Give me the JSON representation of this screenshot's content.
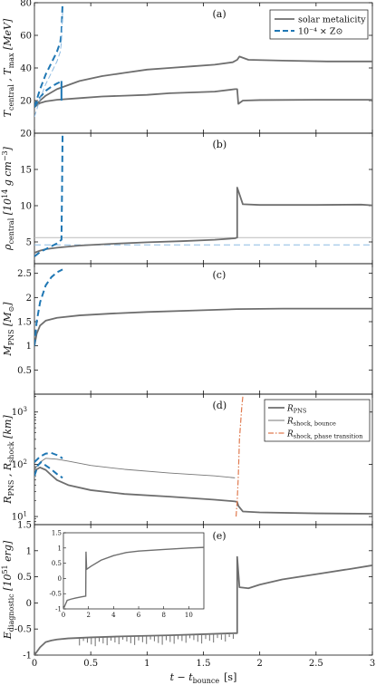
{
  "colors": {
    "solar": "#6e6e6e",
    "lowZ": "#1f77b4",
    "lowZ_light": "#8cbbe3",
    "shock": "#777777",
    "phase": "#e07a4f",
    "axis": "#111111"
  },
  "xaxis": {
    "label_main": "t − t",
    "label_sub": "bounce",
    "label_unit": "[s]",
    "ticks": [
      "0",
      "0.5",
      "1",
      "1.5",
      "2",
      "2.5",
      "3"
    ],
    "range": [
      0,
      3
    ]
  },
  "chart_data": [
    {
      "type": "line",
      "panel_label": "(a)",
      "ylabel_parts": [
        "T",
        "central",
        " , T",
        "max",
        " [MeV]"
      ],
      "ylim": [
        0,
        80
      ],
      "yticks": [
        "20",
        "40",
        "60",
        "80"
      ],
      "legend": {
        "placement": "top-right",
        "entries": [
          "solar metalicity",
          "10⁻⁴ × Z⊙"
        ]
      },
      "series": [
        {
          "name": "solar metalicity",
          "style": "solid",
          "values_x": [
            0,
            0.05,
            0.1,
            0.2,
            0.4,
            0.6,
            0.8,
            1.0,
            1.2,
            1.4,
            1.6,
            1.76,
            1.8,
            1.82,
            1.9,
            2.2,
            2.6,
            3.0
          ],
          "values_y": [
            16,
            20,
            23,
            27,
            32,
            35,
            37,
            39,
            40,
            41,
            42,
            43.5,
            45,
            47,
            45,
            44.5,
            44,
            44
          ]
        },
        {
          "name": "solar metalicity",
          "style": "solid",
          "values_x": [
            0,
            0.05,
            0.1,
            0.2,
            0.4,
            0.6,
            0.8,
            1.0,
            1.2,
            1.4,
            1.6,
            1.78,
            1.8,
            1.81,
            1.85,
            2.0,
            2.5,
            3.0
          ],
          "values_y": [
            16,
            18.5,
            19.5,
            20.5,
            21.5,
            22.5,
            23,
            23.5,
            24.5,
            25,
            25.5,
            27,
            27,
            18,
            20,
            20.3,
            20.5,
            20.5
          ]
        },
        {
          "name": "10⁻⁴ × Z⊙",
          "style": "dashed",
          "values_x": [
            0,
            0.05,
            0.1,
            0.15,
            0.2,
            0.23,
            0.24,
            0.25
          ],
          "values_y": [
            16,
            27,
            36,
            43,
            50,
            56,
            62,
            80
          ]
        },
        {
          "name": "10⁻⁴ × Z⊙",
          "style": "dashed",
          "values_x": [
            0,
            0.05,
            0.1,
            0.15,
            0.2,
            0.23,
            0.24
          ],
          "values_y": [
            16,
            22,
            26,
            28.5,
            30.5,
            31.5,
            32
          ]
        }
      ]
    },
    {
      "type": "line",
      "panel_label": "(b)",
      "ylabel_parts": [
        "ρ",
        "central",
        " [10",
        "14",
        " g cm",
        "−3",
        "]"
      ],
      "ylim": [
        2,
        20
      ],
      "yticks": [
        "5",
        "10",
        "15",
        "20"
      ],
      "series": [
        {
          "name": "solar metalicity",
          "style": "solid",
          "values_x": [
            0,
            0.05,
            0.1,
            0.2,
            0.4,
            0.7,
            1.0,
            1.3,
            1.6,
            1.78,
            1.8,
            1.8,
            1.85,
            2.0,
            2.5,
            2.9,
            3.0
          ],
          "values_y": [
            3.5,
            3.8,
            4.0,
            4.2,
            4.5,
            4.75,
            4.95,
            5.1,
            5.3,
            5.5,
            5.6,
            12.5,
            10.2,
            10.1,
            10.1,
            10.15,
            10.05
          ]
        },
        {
          "name": "10⁻⁴ × Z⊙",
          "style": "dashed",
          "values_x": [
            0,
            0.05,
            0.1,
            0.15,
            0.2,
            0.24,
            0.245,
            0.25
          ],
          "values_y": [
            3.0,
            3.6,
            4.0,
            4.4,
            4.8,
            5.3,
            12,
            20
          ]
        }
      ],
      "reference_lines": [
        {
          "name": "solar metalicity",
          "style": "solid",
          "y": 5.6
        },
        {
          "name": "10⁻⁴ × Z⊙",
          "style": "dashed",
          "y": 4.6
        }
      ]
    },
    {
      "type": "line",
      "panel_label": "(c)",
      "ylabel_parts": [
        "M",
        "PNS",
        " [M",
        "⊙",
        "]"
      ],
      "ylim": [
        0,
        2.7
      ],
      "yticks": [
        "0.5",
        "1",
        "1.5",
        "2",
        "2.5"
      ],
      "series": [
        {
          "name": "solar metalicity",
          "style": "solid",
          "values_x": [
            0,
            0.02,
            0.05,
            0.1,
            0.2,
            0.4,
            0.7,
            1.0,
            1.4,
            1.8,
            2.2,
            2.6,
            3.0
          ],
          "values_y": [
            1.0,
            1.25,
            1.42,
            1.52,
            1.58,
            1.63,
            1.67,
            1.7,
            1.73,
            1.76,
            1.77,
            1.77,
            1.77
          ]
        },
        {
          "name": "10⁻⁴ × Z⊙",
          "style": "dashed",
          "values_x": [
            0,
            0.02,
            0.05,
            0.1,
            0.15,
            0.2,
            0.25
          ],
          "values_y": [
            1.0,
            1.5,
            1.9,
            2.25,
            2.42,
            2.52,
            2.58
          ]
        }
      ]
    },
    {
      "type": "line",
      "panel_label": "(d)",
      "yscale": "log",
      "ylabel_parts": [
        "R",
        "PNS",
        " , R",
        "shock",
        " [km]"
      ],
      "ylim": [
        7,
        2200
      ],
      "yticks": [
        "10",
        "10",
        "10"
      ],
      "ytick_exponents": [
        "1",
        "2",
        "3"
      ],
      "ytick_values": [
        10,
        100,
        1000
      ],
      "legend": {
        "placement": "top-right",
        "entries": [
          "R_PNS",
          "R_shock, bounce",
          "R_shock, phase transition"
        ]
      },
      "legend_labels": [
        {
          "main": "R",
          "sub": "PNS"
        },
        {
          "main": "R",
          "sub": "shock, bounce"
        },
        {
          "main": "R",
          "sub": "shock, phase transition"
        }
      ],
      "series": [
        {
          "name": "R_PNS",
          "style": "solid",
          "values_x": [
            0,
            0.02,
            0.05,
            0.1,
            0.15,
            0.2,
            0.3,
            0.5,
            0.8,
            1.2,
            1.6,
            1.78,
            1.8,
            1.81,
            1.85,
            2.0,
            2.5,
            3.0
          ],
          "values_y": [
            60,
            80,
            87,
            78,
            62,
            50,
            40,
            32,
            27,
            24,
            21,
            19.5,
            19,
            16,
            12.5,
            12,
            11.5,
            11.3
          ]
        },
        {
          "name": "R_shock, bounce",
          "style": "solid-thin",
          "values_x": [
            0,
            0.05,
            0.1,
            0.2,
            0.3,
            0.5,
            0.8,
            1.2,
            1.6,
            1.78
          ],
          "values_y": [
            80,
            110,
            130,
            125,
            115,
            95,
            80,
            68,
            60,
            55
          ]
        },
        {
          "name": "R_shock, phase transition",
          "style": "dashdot",
          "values_x": [
            1.79,
            1.8,
            1.81,
            1.82,
            1.84,
            1.85
          ],
          "values_y": [
            10,
            20,
            60,
            300,
            1200,
            2000
          ]
        },
        {
          "name": "low-Z R_PNS",
          "style": "dashed",
          "values_x": [
            0,
            0.03,
            0.06,
            0.1,
            0.15,
            0.2,
            0.25
          ],
          "values_y": [
            60,
            95,
            110,
            95,
            80,
            65,
            55
          ]
        },
        {
          "name": "low-Z R_shock",
          "style": "dashed",
          "values_x": [
            0,
            0.05,
            0.1,
            0.15,
            0.2,
            0.25
          ],
          "values_y": [
            110,
            140,
            160,
            165,
            150,
            130
          ]
        }
      ]
    },
    {
      "type": "line",
      "panel_label": "(e)",
      "ylabel_parts": [
        "E",
        "diagnostic",
        " [10",
        "51",
        " erg]"
      ],
      "ylim": [
        -1,
        1.5
      ],
      "yticks": [
        "-1",
        "-0.5",
        "0",
        "0.5",
        "1",
        "1.5"
      ],
      "series": [
        {
          "name": "solar metalicity",
          "style": "solid",
          "values_x": [
            0,
            0.05,
            0.1,
            0.15,
            0.2,
            0.3,
            0.5,
            0.8,
            1.2,
            1.5,
            1.78,
            1.8,
            1.8,
            1.82,
            1.9,
            2.0,
            2.2,
            2.5,
            2.8,
            3.0
          ],
          "values_y": [
            -1.0,
            -0.85,
            -0.75,
            -0.72,
            -0.7,
            -0.68,
            -0.66,
            -0.64,
            -0.62,
            -0.6,
            -0.58,
            -0.58,
            0.88,
            0.3,
            0.28,
            0.35,
            0.45,
            0.55,
            0.65,
            0.72
          ]
        }
      ],
      "inset": {
        "xticks": [
          "0",
          "2",
          "4",
          "6",
          "8",
          "10"
        ],
        "xlim": [
          0,
          11.2
        ],
        "ylim": [
          -1,
          1.5
        ],
        "yticks": [
          "-1",
          "-0.5",
          "0",
          "0.5",
          "1",
          "1.5"
        ],
        "series": [
          {
            "name": "solar metalicity",
            "style": "solid",
            "values_x": [
              0,
              0.3,
              0.6,
              1.0,
              1.5,
              1.78,
              1.8,
              1.85,
              2.2,
              3,
              4,
              5,
              6,
              8,
              10,
              11.2
            ],
            "values_y": [
              -1.0,
              -0.72,
              -0.68,
              -0.64,
              -0.6,
              -0.58,
              0.88,
              0.3,
              0.4,
              0.6,
              0.75,
              0.85,
              0.9,
              0.95,
              1.0,
              1.02
            ]
          }
        ]
      }
    }
  ]
}
